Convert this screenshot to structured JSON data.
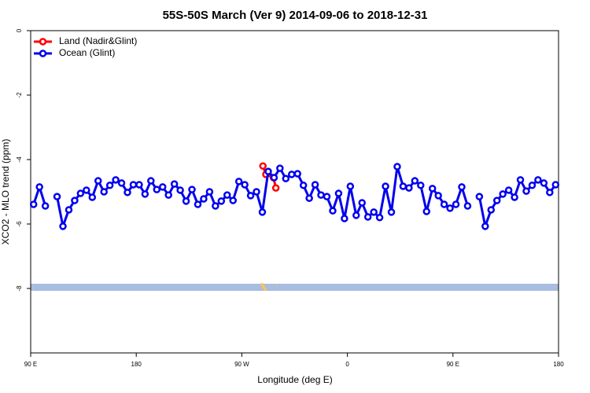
{
  "chart_data": {
    "type": "line",
    "title": "55S-50S March (Ver 9)   2014-09-06 to 2018-12-31",
    "x_label": "Longitude (deg E)",
    "y_label": "XCO2 - MLO trend (ppm)",
    "xlim": [
      90,
      540
    ],
    "ylim": [
      -10,
      0
    ],
    "xticks": [
      {
        "value": 90,
        "label": "90 E"
      },
      180,
      {
        "value": 270,
        "label": "90 W"
      },
      {
        "value": 360,
        "label": "0"
      },
      {
        "value": 450,
        "label": "90 E"
      },
      {
        "value": 540,
        "label": "180"
      }
    ],
    "yticks": [
      0,
      -2,
      -4,
      -6,
      -8
    ],
    "legend": "upper left",
    "series": [
      {
        "name": "Land (Nadir&Glint)",
        "color": "#ff0000",
        "x": [
          288,
          290.5,
          297,
          299
        ],
        "values": [
          -4.2,
          -4.46,
          -4.56,
          -4.88
        ]
      },
      {
        "name": "Ocean (Glint)",
        "color": "#0000ee",
        "x": [
          92.5,
          97.5,
          102.5,
          107.5,
          112.5,
          117.5,
          122.5,
          127.5,
          132.5,
          137.5,
          142.5,
          147.5,
          152.5,
          157.5,
          162.5,
          167.5,
          172.5,
          177.5,
          182.5,
          187.5,
          192.5,
          197.5,
          202.5,
          207.5,
          212.5,
          217.5,
          222.5,
          227.5,
          232.5,
          237.5,
          242.5,
          247.5,
          252.5,
          257.5,
          262.5,
          267.5,
          272.5,
          277.5,
          282.5,
          287.5,
          292.5,
          297.5,
          302.5,
          307.5,
          312.5,
          317.5,
          322.5,
          327.5,
          332.5,
          337.5,
          342.5,
          347.5,
          352.5,
          357.5,
          362.5,
          367.5,
          372.5,
          377.5,
          382.5,
          387.5,
          392.5,
          397.5,
          402.5,
          407.5,
          412.5,
          417.5,
          422.5,
          427.5,
          432.5,
          437.5,
          442.5,
          447.5,
          452.5,
          457.5,
          462.5,
          467.5,
          472.5,
          477.5,
          482.5,
          487.5,
          492.5,
          497.5,
          502.5,
          507.5,
          512.5,
          517.5,
          522.5,
          527.5,
          532.5,
          537.5
        ],
        "values": [
          -5.39,
          -4.85,
          -5.44,
          null,
          -5.15,
          -6.07,
          -5.56,
          -5.27,
          -5.05,
          -4.95,
          -5.17,
          -4.66,
          -5.0,
          -4.8,
          -4.63,
          -4.73,
          -5.02,
          -4.78,
          -4.78,
          -5.07,
          -4.66,
          -4.93,
          -4.85,
          -5.1,
          -4.76,
          -4.95,
          -5.29,
          -4.93,
          -5.39,
          -5.22,
          -5.0,
          -5.44,
          -5.29,
          -5.1,
          -5.27,
          -4.68,
          -4.78,
          -5.12,
          -5.0,
          -5.63,
          -4.37,
          -4.56,
          -4.27,
          -4.59,
          -4.46,
          -4.44,
          -4.8,
          -5.2,
          -4.78,
          -5.1,
          -5.15,
          -5.59,
          -5.05,
          -5.83,
          -4.83,
          -5.73,
          -5.34,
          -5.78,
          -5.63,
          -5.8,
          -4.83,
          -5.63,
          -4.22,
          -4.83,
          -4.88,
          -4.66,
          -4.8,
          -5.61,
          -4.9,
          -5.12,
          -5.39,
          -5.51,
          -5.39,
          -4.85,
          -5.44,
          null,
          -5.15,
          -6.07,
          -5.56,
          -5.27,
          -5.07,
          -4.95,
          -5.17,
          -4.63,
          -4.98,
          -4.8,
          -4.63,
          -4.73,
          -5.02,
          -4.78
        ]
      }
    ]
  }
}
